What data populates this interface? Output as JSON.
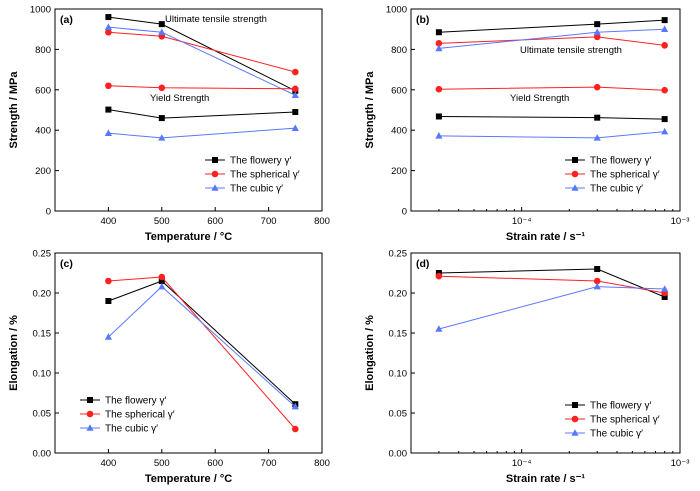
{
  "chart_data": [
    {
      "type": "line",
      "panel_label": "(a)",
      "xlabel": "Temperature / °C",
      "ylabel": "Strength / MPa",
      "xscale": "linear",
      "xlim": [
        300,
        800
      ],
      "ylim": [
        0,
        1000
      ],
      "xticks": [
        400,
        500,
        600,
        700,
        800
      ],
      "yticks": [
        0,
        200,
        400,
        600,
        800,
        1000
      ],
      "x": [
        400,
        500,
        750
      ],
      "annotations": [
        "Ultimate tensile strength",
        "Yield Strength"
      ],
      "legend_position": "bottom-right",
      "legend": [
        "The flowery γ′",
        "The spherical γ′",
        "The cubic γ′"
      ],
      "series": [
        {
          "group": "uts",
          "color": "#000000",
          "marker": "square",
          "values": [
            960,
            925,
            595
          ]
        },
        {
          "group": "uts",
          "color": "#ff2020",
          "marker": "circle",
          "values": [
            885,
            865,
            688
          ]
        },
        {
          "group": "uts",
          "color": "#5a78ff",
          "marker": "triangle",
          "values": [
            910,
            885,
            573
          ]
        },
        {
          "group": "ys",
          "color": "#000000",
          "marker": "square",
          "values": [
            502,
            460,
            490
          ]
        },
        {
          "group": "ys",
          "color": "#ff2020",
          "marker": "circle",
          "values": [
            620,
            610,
            605
          ]
        },
        {
          "group": "ys",
          "color": "#5a78ff",
          "marker": "triangle",
          "values": [
            385,
            362,
            410
          ]
        }
      ]
    },
    {
      "type": "line",
      "panel_label": "(b)",
      "xlabel": "Strain rate / s⁻¹",
      "ylabel": "Strength / MPa",
      "xscale": "log",
      "xlim": [
        2e-05,
        0.001
      ],
      "ylim": [
        0,
        1000
      ],
      "xticks": [
        0.0001,
        0.001
      ],
      "xtick_labels": [
        "10⁻⁴",
        "10⁻³"
      ],
      "yticks": [
        0,
        200,
        400,
        600,
        800,
        1000
      ],
      "x": [
        3e-05,
        0.0003,
        0.0008
      ],
      "annotations": [
        "Ultimate tensile strength",
        "Yield Strength"
      ],
      "legend_position": "bottom-right",
      "legend": [
        "The flowery γ′",
        "The spherical γ′",
        "The cubic γ′"
      ],
      "series": [
        {
          "group": "uts",
          "color": "#000000",
          "marker": "square",
          "values": [
            885,
            925,
            945
          ]
        },
        {
          "group": "uts",
          "color": "#ff2020",
          "marker": "circle",
          "values": [
            830,
            862,
            820
          ]
        },
        {
          "group": "uts",
          "color": "#5a78ff",
          "marker": "triangle",
          "values": [
            805,
            885,
            900
          ]
        },
        {
          "group": "ys",
          "color": "#000000",
          "marker": "square",
          "values": [
            468,
            462,
            455
          ]
        },
        {
          "group": "ys",
          "color": "#ff2020",
          "marker": "circle",
          "values": [
            603,
            613,
            598
          ]
        },
        {
          "group": "ys",
          "color": "#5a78ff",
          "marker": "triangle",
          "values": [
            372,
            362,
            393
          ]
        }
      ]
    },
    {
      "type": "line",
      "panel_label": "(c)",
      "xlabel": "Temperature / °C",
      "ylabel": "Elongation / %",
      "xscale": "linear",
      "xlim": [
        300,
        800
      ],
      "ylim": [
        0,
        0.25
      ],
      "xticks": [
        400,
        500,
        600,
        700,
        800
      ],
      "yticks": [
        0.0,
        0.05,
        0.1,
        0.15,
        0.2,
        0.25
      ],
      "ytick_decimals": 2,
      "x": [
        400,
        500,
        750
      ],
      "legend_position": "bottom-left",
      "legend": [
        "The flowery γ′",
        "The spherical γ′",
        "The cubic γ′"
      ],
      "series": [
        {
          "color": "#000000",
          "marker": "square",
          "values": [
            0.19,
            0.215,
            0.061
          ]
        },
        {
          "color": "#ff2020",
          "marker": "circle",
          "values": [
            0.215,
            0.22,
            0.03
          ]
        },
        {
          "color": "#5a78ff",
          "marker": "triangle",
          "values": [
            0.145,
            0.208,
            0.058
          ]
        }
      ]
    },
    {
      "type": "line",
      "panel_label": "(d)",
      "xlabel": "Strain rate / s⁻¹",
      "ylabel": "Elongation / %",
      "xscale": "log",
      "xlim": [
        2e-05,
        0.001
      ],
      "ylim": [
        0,
        0.25
      ],
      "xticks": [
        0.0001,
        0.001
      ],
      "xtick_labels": [
        "10⁻⁴",
        "10⁻³"
      ],
      "yticks": [
        0.0,
        0.05,
        0.1,
        0.15,
        0.2,
        0.25
      ],
      "ytick_decimals": 2,
      "x": [
        3e-05,
        0.0003,
        0.0008
      ],
      "legend_position": "center-right",
      "legend": [
        "The flowery γ′",
        "The spherical γ′",
        "The cubic γ′"
      ],
      "series": [
        {
          "color": "#000000",
          "marker": "square",
          "values": [
            0.225,
            0.23,
            0.195
          ]
        },
        {
          "color": "#ff2020",
          "marker": "circle",
          "values": [
            0.221,
            0.215,
            0.2
          ]
        },
        {
          "color": "#5a78ff",
          "marker": "triangle",
          "values": [
            0.155,
            0.208,
            0.205
          ]
        }
      ]
    }
  ]
}
